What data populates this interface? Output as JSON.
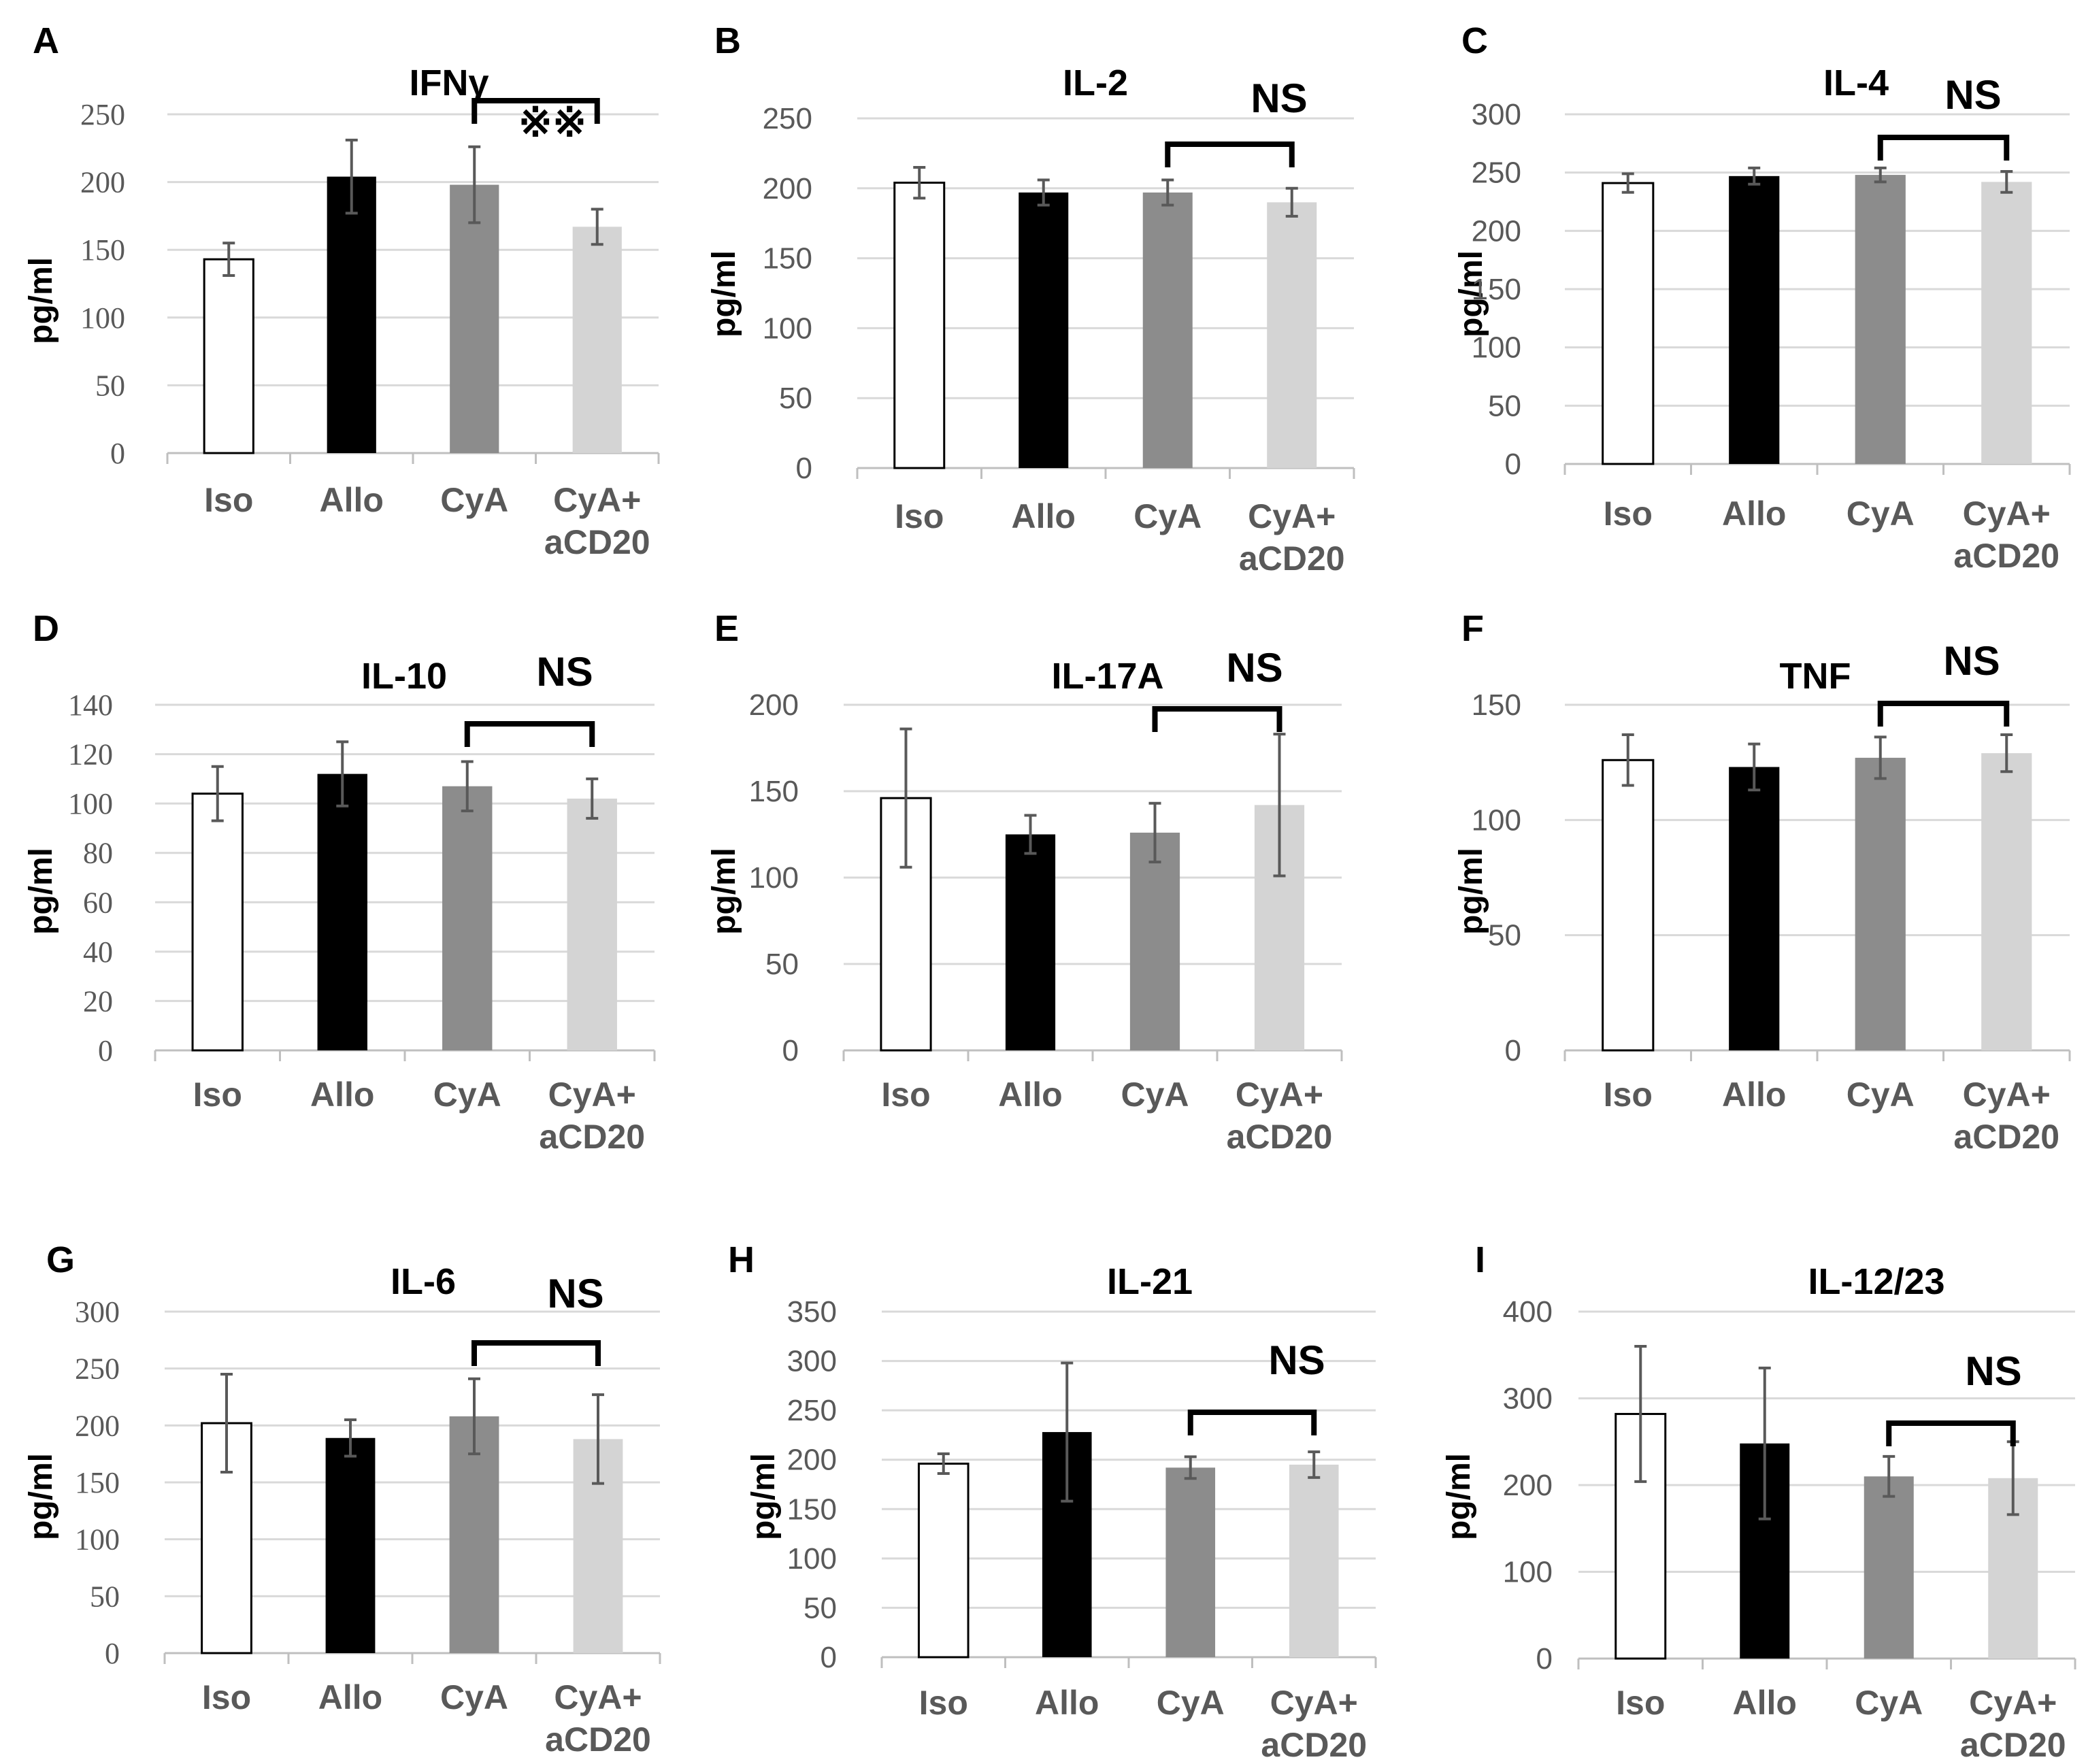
{
  "figure": {
    "group_labels": [
      "Iso",
      "Allo",
      "CyA",
      "CyA+ aCD20"
    ],
    "group_colors": [
      "#ffffff",
      "#000000",
      "#8c8c8c",
      "#d4d4d4"
    ],
    "bar_outline": "#000000",
    "grid_color": "#d9d9d9",
    "axis_color": "#bfbfbf",
    "errbar_color": "#595959"
  },
  "chart_data": [
    {
      "panel": "A",
      "type": "bar",
      "title": "IFNγ",
      "ylabel": "pg/ml",
      "categories": [
        "Iso",
        "Allo",
        "CyA",
        "CyA+ aCD20"
      ],
      "values": [
        143,
        204,
        198,
        167
      ],
      "errors": [
        12,
        27,
        28,
        13
      ],
      "ylim": [
        0,
        250
      ],
      "yticks": [
        "0",
        "50",
        "100",
        "150",
        "200",
        "250"
      ],
      "tick_font": "serif",
      "significance": {
        "from": "CyA",
        "to": "CyA+ aCD20",
        "label": "※※"
      }
    },
    {
      "panel": "B",
      "type": "bar",
      "title": "IL-2",
      "ylabel": "pg/ml",
      "categories": [
        "Iso",
        "Allo",
        "CyA",
        "CyA+ aCD20"
      ],
      "values": [
        204,
        197,
        197,
        190
      ],
      "errors": [
        11,
        9,
        9,
        10
      ],
      "ylim": [
        0,
        250
      ],
      "yticks": [
        "0",
        "50",
        "100",
        "150",
        "200",
        "250"
      ],
      "tick_font": "sans",
      "significance": {
        "from": "CyA",
        "to": "CyA+ aCD20",
        "label": "NS"
      }
    },
    {
      "panel": "C",
      "type": "bar",
      "title": "IL-4",
      "ylabel": "pg/ml",
      "categories": [
        "Iso",
        "Allo",
        "CyA",
        "CyA+ aCD20"
      ],
      "values": [
        241,
        247,
        248,
        242
      ],
      "errors": [
        8,
        7,
        6,
        9
      ],
      "ylim": [
        0,
        300
      ],
      "yticks": [
        "0",
        "50",
        "100",
        "150",
        "200",
        "250",
        "300"
      ],
      "tick_font": "sans",
      "significance": {
        "from": "CyA",
        "to": "CyA+ aCD20",
        "label": "NS"
      }
    },
    {
      "panel": "D",
      "type": "bar",
      "title": "IL-10",
      "ylabel": "pg/ml",
      "categories": [
        "Iso",
        "Allo",
        "CyA",
        "CyA+ aCD20"
      ],
      "values": [
        104,
        112,
        107,
        102
      ],
      "errors": [
        11,
        13,
        10,
        8
      ],
      "ylim": [
        0,
        140
      ],
      "yticks": [
        "0",
        "20",
        "40",
        "60",
        "80",
        "100",
        "120",
        "140"
      ],
      "tick_font": "serif",
      "significance": {
        "from": "CyA",
        "to": "CyA+ aCD20",
        "label": "NS"
      }
    },
    {
      "panel": "E",
      "type": "bar",
      "title": "IL-17A",
      "ylabel": "pg/ml",
      "categories": [
        "Iso",
        "Allo",
        "CyA",
        "CyA+ aCD20"
      ],
      "values": [
        146,
        125,
        126,
        142
      ],
      "errors": [
        40,
        11,
        17,
        41
      ],
      "ylim": [
        0,
        200
      ],
      "yticks": [
        "0",
        "50",
        "100",
        "150",
        "200"
      ],
      "tick_font": "sans",
      "significance": {
        "from": "CyA",
        "to": "CyA+ aCD20",
        "label": "NS"
      }
    },
    {
      "panel": "F",
      "type": "bar",
      "title": "TNF",
      "ylabel": "pg/ml",
      "categories": [
        "Iso",
        "Allo",
        "CyA",
        "CyA+ aCD20"
      ],
      "values": [
        126,
        123,
        127,
        129
      ],
      "errors": [
        11,
        10,
        9,
        8
      ],
      "ylim": [
        0,
        150
      ],
      "yticks": [
        "0",
        "50",
        "100",
        "150"
      ],
      "tick_font": "sans",
      "significance": {
        "from": "CyA",
        "to": "CyA+ aCD20",
        "label": "NS"
      }
    },
    {
      "panel": "G",
      "type": "bar",
      "title": "IL-6",
      "ylabel": "pg/ml",
      "categories": [
        "Iso",
        "Allo",
        "CyA",
        "CyA+ aCD20"
      ],
      "values": [
        202,
        189,
        208,
        188
      ],
      "errors": [
        43,
        16,
        33,
        39
      ],
      "ylim": [
        0,
        300
      ],
      "yticks": [
        "0",
        "50",
        "100",
        "150",
        "200",
        "250",
        "300"
      ],
      "tick_font": "serif",
      "significance": {
        "from": "CyA",
        "to": "CyA+ aCD20",
        "label": "NS"
      }
    },
    {
      "panel": "H",
      "type": "bar",
      "title": "IL-21",
      "ylabel": "pg/ml",
      "categories": [
        "Iso",
        "Allo",
        "CyA",
        "CyA+ aCD20"
      ],
      "values": [
        196,
        228,
        192,
        195
      ],
      "errors": [
        10,
        70,
        11,
        13
      ],
      "ylim": [
        0,
        350
      ],
      "yticks": [
        "0",
        "50",
        "100",
        "150",
        "200",
        "250",
        "300",
        "350"
      ],
      "tick_font": "sans",
      "significance": {
        "from": "CyA",
        "to": "CyA+ aCD20",
        "label": "NS"
      }
    },
    {
      "panel": "I",
      "type": "bar",
      "title": "IL-12/23",
      "ylabel": "pg/ml",
      "categories": [
        "Iso",
        "Allo",
        "CyA",
        "CyA+ aCD20"
      ],
      "values": [
        282,
        248,
        210,
        208
      ],
      "errors": [
        78,
        87,
        23,
        42
      ],
      "ylim": [
        0,
        400
      ],
      "yticks": [
        "0",
        "100",
        "200",
        "300",
        "400"
      ],
      "tick_font": "sans",
      "significance": {
        "from": "CyA",
        "to": "CyA+ aCD20",
        "label": "NS"
      }
    }
  ]
}
